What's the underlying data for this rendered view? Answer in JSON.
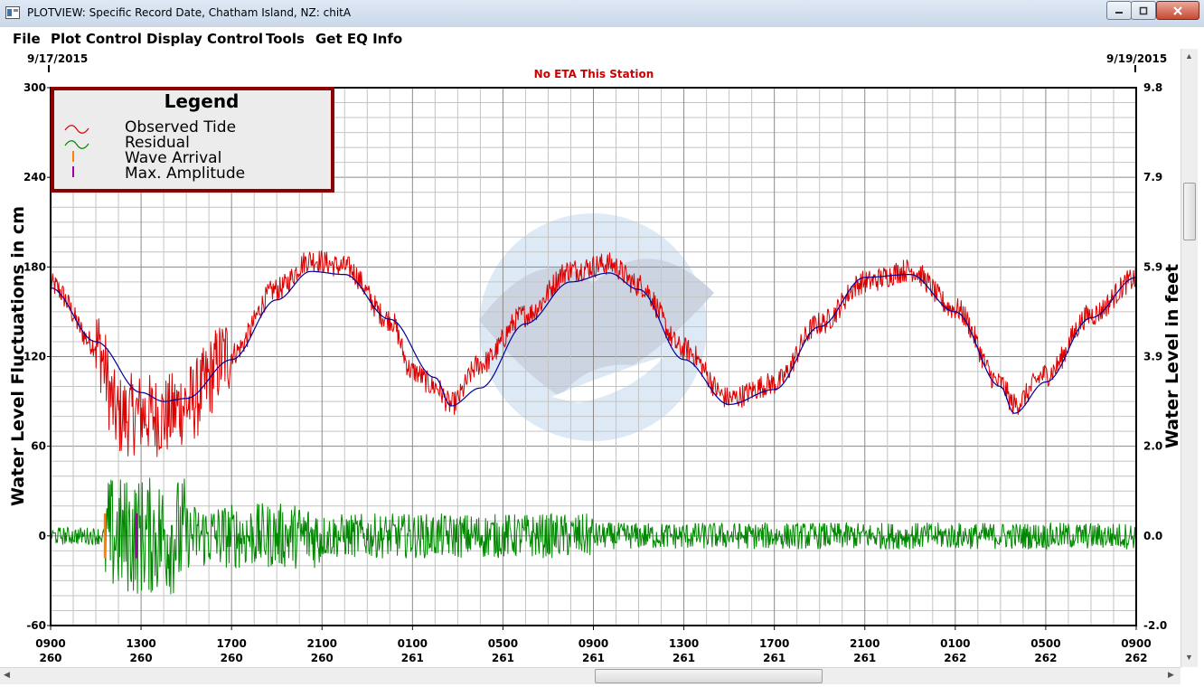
{
  "window": {
    "title": "PLOTVIEW: Specific Record Date, Chatham Island, NZ: chitA",
    "buttons": {
      "minimize": "minimize-icon",
      "maximize": "maximize-icon",
      "close": "close-icon"
    }
  },
  "menu": {
    "items": [
      "File",
      "Plot Control",
      "Display Control",
      "Tools",
      "Get EQ Info"
    ]
  },
  "chart_data": {
    "type": "line",
    "title": "",
    "subtitle": "No ETA This Station",
    "start_date": "9/17/2015",
    "end_date": "9/19/2015",
    "ylabel": "Water Level Fluctuations in cm",
    "y2label": "Water Level in feet",
    "ylim": [
      -60,
      300
    ],
    "y_ticks": [
      300,
      240,
      180,
      120,
      60,
      0,
      -60
    ],
    "y2_ticks": [
      "9.8",
      "7.9",
      "5.9",
      "3.9",
      "2.0",
      "0.0",
      "-2.0"
    ],
    "xlim_hours": [
      0,
      48
    ],
    "x_ticks": [
      {
        "time": "0900",
        "day": "260"
      },
      {
        "time": "1300",
        "day": "260"
      },
      {
        "time": "1700",
        "day": "260"
      },
      {
        "time": "2100",
        "day": "260"
      },
      {
        "time": "0100",
        "day": "261"
      },
      {
        "time": "0500",
        "day": "261"
      },
      {
        "time": "0900",
        "day": "261"
      },
      {
        "time": "1300",
        "day": "261"
      },
      {
        "time": "1700",
        "day": "261"
      },
      {
        "time": "2100",
        "day": "261"
      },
      {
        "time": "0100",
        "day": "262"
      },
      {
        "time": "0500",
        "day": "262"
      },
      {
        "time": "0900",
        "day": "262"
      }
    ],
    "grid": true,
    "legend": {
      "title": "Legend",
      "position": "top-left",
      "entries": [
        "Observed Tide",
        "Residual",
        "Wave Arrival",
        "Max. Amplitude"
      ]
    },
    "colors": {
      "observed": "#dd0000",
      "predicted": "#00009a",
      "residual": "#008800",
      "wave_arrival": "#ff8000",
      "max_amplitude": "#a000a0",
      "legend_border": "#8b0000",
      "subtitle": "#cc0000"
    },
    "predicted_tide": {
      "x": [
        0,
        2,
        4,
        5,
        6,
        8,
        10,
        11.5,
        13,
        15,
        17,
        17.7,
        19,
        21,
        23,
        24.7,
        26,
        28,
        30,
        32,
        34,
        36,
        38,
        40,
        42,
        42.6,
        44,
        46,
        48
      ],
      "y": [
        166,
        130,
        96,
        90,
        92,
        118,
        158,
        177,
        175,
        145,
        106,
        87,
        99,
        142,
        170,
        176,
        165,
        118,
        88,
        98,
        140,
        173,
        175,
        150,
        100,
        82,
        103,
        146,
        173
      ]
    },
    "observed_tide": {
      "x": [
        0,
        2,
        3,
        4,
        5,
        6,
        8,
        10,
        11.5,
        13,
        15,
        16,
        17,
        17.7,
        19,
        21,
        23,
        24.7,
        26,
        28,
        30,
        32,
        34,
        36,
        38,
        40,
        42,
        42.6,
        44,
        46,
        48
      ],
      "y": [
        168,
        128,
        80,
        82,
        80,
        88,
        122,
        165,
        185,
        180,
        145,
        110,
        100,
        88,
        115,
        148,
        178,
        182,
        168,
        125,
        92,
        102,
        142,
        170,
        178,
        152,
        102,
        88,
        108,
        148,
        172
      ],
      "noise_amplitude_cm": {
        "hours_2_to_8": 35,
        "other": 10
      }
    },
    "residual": {
      "x": [
        0,
        2,
        2.4,
        3,
        3.5,
        4,
        5,
        6,
        8,
        10,
        12,
        16,
        20,
        24,
        28,
        32,
        36,
        40,
        44,
        48
      ],
      "y": [
        0,
        0,
        -5,
        30,
        -45,
        50,
        -40,
        35,
        25,
        -20,
        25,
        -20,
        20,
        -15,
        15,
        -10,
        10,
        -10,
        10,
        0
      ],
      "envelope_cm": {
        "before_arrival": 6,
        "hours_3_to_6": 40,
        "hours_6_to_12": 22,
        "hours_12_to_24": 15,
        "after_24": 9
      }
    },
    "markers": [
      {
        "label": "Wave Arrival",
        "x_hours": 2.4,
        "y_low": -15,
        "y_high": 15
      },
      {
        "label": "Max. Amplitude",
        "x_hours": 3.8,
        "y_low": -15,
        "y_high": 15
      }
    ]
  }
}
